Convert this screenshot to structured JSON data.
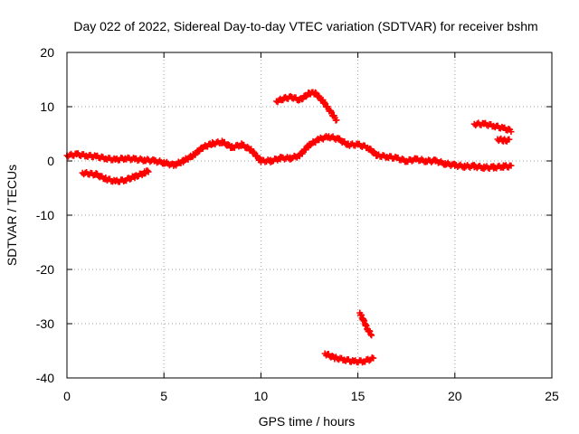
{
  "chart_data": {
    "type": "scatter",
    "title": "Day 022 of 2022, Sidereal Day-to-day VTEC variation (SDTVAR) for receiver bshm",
    "xlabel": "GPS time / hours",
    "ylabel": "SDTVAR / TECUs",
    "xlim": [
      0,
      25
    ],
    "ylim": [
      -40,
      20
    ],
    "xticks": [
      "0",
      "5",
      "10",
      "15",
      "20",
      "25"
    ],
    "yticks": [
      "-40",
      "-30",
      "-20",
      "-10",
      "0",
      "10",
      "20"
    ],
    "grid": true,
    "marker_color": "#ff0000",
    "series": [
      {
        "name": "trace-main-a",
        "points": [
          [
            0,
            1.0
          ],
          [
            0.5,
            1.2
          ],
          [
            1,
            1.0
          ],
          [
            1.5,
            0.8
          ],
          [
            2,
            0.5
          ],
          [
            2.5,
            0.2
          ],
          [
            3,
            0.5
          ],
          [
            3.5,
            0.3
          ],
          [
            4,
            0.2
          ],
          [
            4.5,
            0.0
          ],
          [
            5,
            -0.3
          ],
          [
            5.5,
            -0.8
          ],
          [
            6,
            0.0
          ],
          [
            6.5,
            1.0
          ],
          [
            7,
            2.5
          ],
          [
            7.5,
            3.2
          ],
          [
            8,
            3.5
          ],
          [
            8.5,
            2.5
          ],
          [
            9,
            3.0
          ],
          [
            9.5,
            2.0
          ],
          [
            10,
            0.0
          ],
          [
            10.5,
            0.0
          ],
          [
            11,
            0.5
          ],
          [
            11.5,
            0.5
          ],
          [
            12,
            1.0
          ],
          [
            12.5,
            3.0
          ],
          [
            13,
            4.0
          ],
          [
            13.5,
            4.5
          ],
          [
            14,
            4.0
          ],
          [
            14.5,
            3.0
          ],
          [
            15,
            3.0
          ],
          [
            15.5,
            2.5
          ],
          [
            16,
            1.0
          ],
          [
            16.5,
            0.8
          ],
          [
            17,
            0.5
          ],
          [
            17.5,
            0.0
          ],
          [
            18,
            0.3
          ],
          [
            18.5,
            0.0
          ],
          [
            19,
            0.0
          ],
          [
            19.5,
            -0.5
          ],
          [
            20,
            -0.8
          ],
          [
            20.5,
            -1.0
          ],
          [
            21,
            -1.0
          ],
          [
            21.5,
            -1.2
          ],
          [
            22,
            -1.2
          ],
          [
            22.5,
            -1.0
          ],
          [
            22.9,
            -1.0
          ]
        ]
      },
      {
        "name": "trace-low-early",
        "points": [
          [
            0.8,
            -2.2
          ],
          [
            1.5,
            -2.5
          ],
          [
            2,
            -3.3
          ],
          [
            2.5,
            -3.8
          ],
          [
            3,
            -3.5
          ],
          [
            3.5,
            -2.9
          ],
          [
            4,
            -2.2
          ],
          [
            4.2,
            -1.8
          ]
        ]
      },
      {
        "name": "trace-upper-midday",
        "points": [
          [
            10.8,
            11.0
          ],
          [
            11.2,
            11.5
          ],
          [
            11.6,
            11.8
          ],
          [
            12,
            11.2
          ],
          [
            12.5,
            12.5
          ],
          [
            12.8,
            12.5
          ],
          [
            13.2,
            11.0
          ],
          [
            13.6,
            9.0
          ],
          [
            13.9,
            7.5
          ]
        ]
      },
      {
        "name": "trace-deep-low",
        "points": [
          [
            13.3,
            -35.5
          ],
          [
            13.8,
            -36.3
          ],
          [
            14.3,
            -36.6
          ],
          [
            14.8,
            -37.0
          ],
          [
            15.3,
            -36.9
          ],
          [
            15.8,
            -36.4
          ]
        ]
      },
      {
        "name": "trace-steep-drop",
        "points": [
          [
            15.1,
            -28.0
          ],
          [
            15.3,
            -29.5
          ],
          [
            15.5,
            -31.0
          ],
          [
            15.7,
            -32.0
          ]
        ]
      },
      {
        "name": "trace-late-upper",
        "points": [
          [
            21,
            6.8
          ],
          [
            21.5,
            6.8
          ],
          [
            22,
            6.5
          ],
          [
            22.5,
            6.0
          ],
          [
            22.9,
            5.6
          ]
        ]
      },
      {
        "name": "trace-late-mid",
        "points": [
          [
            22.2,
            4.0
          ],
          [
            22.5,
            3.8
          ],
          [
            22.8,
            3.8
          ]
        ]
      }
    ]
  }
}
